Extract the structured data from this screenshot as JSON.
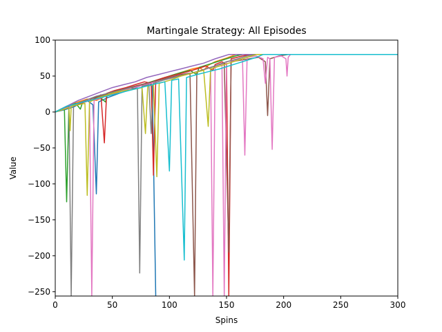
{
  "chart_data": {
    "type": "line",
    "title": "Martingale Strategy: All Episodes",
    "xlabel": "Spins",
    "ylabel": "Value",
    "xlim": [
      0,
      300
    ],
    "ylim": [
      -256,
      100
    ],
    "xticks": [
      0,
      50,
      100,
      150,
      200,
      250,
      300
    ],
    "yticks": [
      100,
      50,
      0,
      -50,
      -100,
      -150,
      -200,
      -250
    ],
    "ytick_labels": [
      "100",
      "50",
      "0",
      "−50",
      "−100",
      "−150",
      "−200",
      "−250"
    ],
    "grid": false,
    "legend": "none",
    "plateau_value": 80,
    "colors": [
      "#1f77b4",
      "#ff7f0e",
      "#2ca02c",
      "#d62728",
      "#9467bd",
      "#8c564b",
      "#e377c2",
      "#7f7f7f",
      "#bcbd22",
      "#17becf"
    ],
    "series": [
      {
        "color": "#1f77b4",
        "values": [
          [
            0,
            0
          ],
          [
            8,
            3
          ],
          [
            16,
            7
          ],
          [
            22,
            12
          ],
          [
            28,
            16
          ],
          [
            33,
            10
          ],
          [
            36,
            -114
          ],
          [
            38,
            14
          ],
          [
            46,
            20
          ],
          [
            56,
            26
          ],
          [
            66,
            31
          ],
          [
            74,
            36
          ],
          [
            80,
            40
          ],
          [
            85,
            38
          ],
          [
            88,
            -256
          ]
        ]
      },
      {
        "color": "#ff7f0e",
        "values": [
          [
            0,
            0
          ],
          [
            10,
            8
          ],
          [
            20,
            14
          ],
          [
            28,
            18
          ],
          [
            36,
            16
          ],
          [
            44,
            22
          ],
          [
            52,
            26
          ],
          [
            60,
            30
          ],
          [
            70,
            36
          ],
          [
            80,
            40
          ],
          [
            90,
            45
          ],
          [
            100,
            50
          ],
          [
            110,
            55
          ],
          [
            120,
            60
          ],
          [
            126,
            62
          ],
          [
            130,
            58
          ],
          [
            134,
            65
          ],
          [
            140,
            70
          ],
          [
            150,
            75
          ],
          [
            158,
            80
          ],
          [
            300,
            80
          ]
        ]
      },
      {
        "color": "#2ca02c",
        "values": [
          [
            0,
            0
          ],
          [
            5,
            3
          ],
          [
            8,
            6
          ],
          [
            10,
            -125
          ],
          [
            12,
            8
          ],
          [
            18,
            12
          ],
          [
            22,
            4
          ],
          [
            24,
            14
          ],
          [
            30,
            18
          ],
          [
            38,
            22
          ],
          [
            44,
            14
          ],
          [
            46,
            26
          ],
          [
            54,
            28
          ],
          [
            60,
            30
          ],
          [
            68,
            34
          ],
          [
            76,
            38
          ],
          [
            84,
            42
          ],
          [
            92,
            46
          ],
          [
            100,
            50
          ],
          [
            110,
            55
          ],
          [
            118,
            58
          ],
          [
            124,
            52
          ],
          [
            126,
            62
          ],
          [
            134,
            66
          ],
          [
            142,
            70
          ],
          [
            150,
            74
          ],
          [
            158,
            78
          ],
          [
            164,
            80
          ],
          [
            300,
            80
          ]
        ]
      },
      {
        "color": "#d62728",
        "values": [
          [
            0,
            0
          ],
          [
            10,
            6
          ],
          [
            18,
            10
          ],
          [
            26,
            14
          ],
          [
            34,
            18
          ],
          [
            40,
            24
          ],
          [
            43,
            -43
          ],
          [
            45,
            26
          ],
          [
            52,
            30
          ],
          [
            62,
            34
          ],
          [
            70,
            38
          ],
          [
            78,
            42
          ],
          [
            84,
            40
          ],
          [
            86,
            -88
          ],
          [
            88,
            44
          ],
          [
            96,
            48
          ],
          [
            106,
            52
          ],
          [
            116,
            56
          ],
          [
            124,
            60
          ],
          [
            132,
            64
          ],
          [
            138,
            58
          ],
          [
            140,
            66
          ],
          [
            146,
            70
          ],
          [
            150,
            66
          ],
          [
            152,
            -256
          ],
          [
            154,
            74
          ],
          [
            164,
            78
          ],
          [
            172,
            80
          ],
          [
            300,
            80
          ]
        ]
      },
      {
        "color": "#9467bd",
        "values": [
          [
            0,
            0
          ],
          [
            10,
            8
          ],
          [
            20,
            16
          ],
          [
            30,
            22
          ],
          [
            40,
            28
          ],
          [
            50,
            34
          ],
          [
            60,
            38
          ],
          [
            70,
            42
          ],
          [
            80,
            48
          ],
          [
            90,
            52
          ],
          [
            100,
            56
          ],
          [
            110,
            60
          ],
          [
            120,
            64
          ],
          [
            130,
            68
          ],
          [
            140,
            74
          ],
          [
            148,
            78
          ],
          [
            152,
            80
          ],
          [
            300,
            80
          ]
        ]
      },
      {
        "color": "#8c564b",
        "values": [
          [
            0,
            0
          ],
          [
            10,
            6
          ],
          [
            20,
            12
          ],
          [
            30,
            18
          ],
          [
            40,
            22
          ],
          [
            50,
            28
          ],
          [
            60,
            32
          ],
          [
            70,
            36
          ],
          [
            80,
            40
          ],
          [
            90,
            44
          ],
          [
            100,
            48
          ],
          [
            110,
            52
          ],
          [
            118,
            54
          ],
          [
            122,
            -256
          ],
          [
            124,
            56
          ],
          [
            132,
            60
          ],
          [
            140,
            64
          ],
          [
            148,
            68
          ],
          [
            152,
            -195
          ],
          [
            154,
            70
          ],
          [
            162,
            72
          ],
          [
            170,
            74
          ],
          [
            178,
            76
          ],
          [
            184,
            70
          ],
          [
            186,
            -5
          ],
          [
            188,
            74
          ],
          [
            196,
            78
          ],
          [
            204,
            80
          ],
          [
            300,
            80
          ]
        ]
      },
      {
        "color": "#e377c2",
        "values": [
          [
            0,
            0
          ],
          [
            10,
            6
          ],
          [
            20,
            12
          ],
          [
            30,
            18
          ],
          [
            32,
            -256
          ],
          [
            34,
            16
          ],
          [
            44,
            22
          ],
          [
            54,
            28
          ],
          [
            64,
            32
          ],
          [
            74,
            36
          ],
          [
            84,
            40
          ],
          [
            94,
            44
          ],
          [
            104,
            48
          ],
          [
            114,
            52
          ],
          [
            124,
            56
          ],
          [
            132,
            60
          ],
          [
            136,
            62
          ],
          [
            138,
            -256
          ],
          [
            140,
            64
          ],
          [
            146,
            68
          ],
          [
            148,
            -256
          ],
          [
            150,
            70
          ],
          [
            158,
            72
          ],
          [
            164,
            74
          ],
          [
            166,
            -60
          ],
          [
            168,
            76
          ],
          [
            176,
            78
          ],
          [
            182,
            74
          ],
          [
            184,
            40
          ],
          [
            186,
            76
          ],
          [
            188,
            74
          ],
          [
            190,
            -52
          ],
          [
            192,
            76
          ],
          [
            198,
            78
          ],
          [
            202,
            74
          ],
          [
            203,
            50
          ],
          [
            204,
            76
          ],
          [
            206,
            80
          ],
          [
            300,
            80
          ]
        ]
      },
      {
        "color": "#7f7f7f",
        "values": [
          [
            0,
            0
          ],
          [
            8,
            6
          ],
          [
            12,
            8
          ],
          [
            14,
            -256
          ],
          [
            16,
            10
          ],
          [
            26,
            16
          ],
          [
            36,
            22
          ],
          [
            46,
            26
          ],
          [
            56,
            30
          ],
          [
            66,
            34
          ],
          [
            72,
            32
          ],
          [
            74,
            -224
          ],
          [
            76,
            36
          ],
          [
            82,
            38
          ],
          [
            84,
            -30
          ],
          [
            86,
            40
          ],
          [
            94,
            44
          ],
          [
            104,
            48
          ],
          [
            114,
            52
          ],
          [
            124,
            56
          ],
          [
            132,
            60
          ],
          [
            140,
            64
          ],
          [
            150,
            70
          ],
          [
            160,
            74
          ],
          [
            168,
            78
          ],
          [
            174,
            80
          ],
          [
            300,
            80
          ]
        ]
      },
      {
        "color": "#bcbd22",
        "values": [
          [
            0,
            0
          ],
          [
            8,
            4
          ],
          [
            12,
            6
          ],
          [
            13,
            -26
          ],
          [
            14,
            8
          ],
          [
            20,
            10
          ],
          [
            26,
            12
          ],
          [
            28,
            -116
          ],
          [
            30,
            14
          ],
          [
            38,
            20
          ],
          [
            46,
            24
          ],
          [
            54,
            28
          ],
          [
            62,
            30
          ],
          [
            70,
            32
          ],
          [
            76,
            34
          ],
          [
            79,
            -30
          ],
          [
            81,
            36
          ],
          [
            86,
            38
          ],
          [
            89,
            -90
          ],
          [
            91,
            40
          ],
          [
            100,
            44
          ],
          [
            110,
            50
          ],
          [
            120,
            54
          ],
          [
            130,
            58
          ],
          [
            134,
            -20
          ],
          [
            136,
            60
          ],
          [
            144,
            64
          ],
          [
            152,
            68
          ],
          [
            160,
            72
          ],
          [
            168,
            76
          ],
          [
            176,
            80
          ],
          [
            300,
            80
          ]
        ]
      },
      {
        "color": "#17becf",
        "values": [
          [
            0,
            0
          ],
          [
            10,
            8
          ],
          [
            20,
            12
          ],
          [
            30,
            16
          ],
          [
            40,
            20
          ],
          [
            50,
            24
          ],
          [
            60,
            28
          ],
          [
            70,
            32
          ],
          [
            80,
            36
          ],
          [
            90,
            40
          ],
          [
            96,
            42
          ],
          [
            100,
            -82
          ],
          [
            102,
            44
          ],
          [
            108,
            46
          ],
          [
            113,
            -206
          ],
          [
            115,
            48
          ],
          [
            124,
            52
          ],
          [
            134,
            56
          ],
          [
            144,
            60
          ],
          [
            152,
            64
          ],
          [
            160,
            68
          ],
          [
            168,
            72
          ],
          [
            176,
            76
          ],
          [
            182,
            80
          ],
          [
            300,
            80
          ]
        ]
      }
    ]
  }
}
